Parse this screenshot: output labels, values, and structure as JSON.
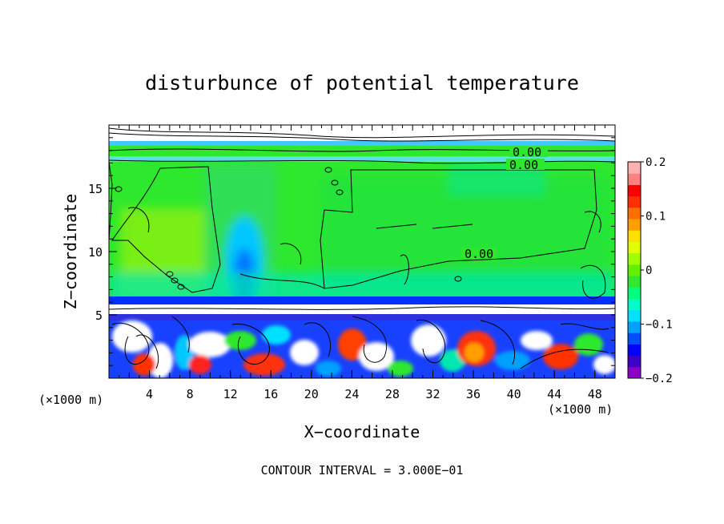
{
  "chart_data": {
    "type": "heatmap",
    "title": "disturbunce of potential temperature",
    "xlabel": "X−coordinate",
    "ylabel": "Z−coordinate",
    "x_unit_label": "(×1000 m)",
    "y_unit_label": "(×1000 m)",
    "xlim": [
      0,
      50
    ],
    "ylim": [
      0,
      20
    ],
    "x_ticks": [
      "4",
      "8",
      "12",
      "16",
      "20",
      "24",
      "28",
      "32",
      "36",
      "40",
      "44",
      "48"
    ],
    "x_tick_values": [
      4,
      8,
      12,
      16,
      20,
      24,
      28,
      32,
      36,
      40,
      44,
      48
    ],
    "y_ticks": [
      "5",
      "10",
      "15"
    ],
    "y_tick_values": [
      5,
      10,
      15
    ],
    "colorbar": {
      "min": -0.2,
      "max": 0.2,
      "labels": [
        "0.2",
        "0.1",
        "0",
        "−0.1",
        "−0.2"
      ],
      "label_values": [
        0.2,
        0.1,
        0,
        -0.1,
        -0.2
      ],
      "colors": [
        "#8a00c8",
        "#3c00c8",
        "#0000ff",
        "#0050ff",
        "#00a0ff",
        "#00e0ff",
        "#00ffc8",
        "#00ff80",
        "#30e830",
        "#60f000",
        "#a0ff00",
        "#e0ff00",
        "#ffe000",
        "#ffa000",
        "#ff7000",
        "#ff3000",
        "#ff0000",
        "#ff8080",
        "#ffb0b0"
      ]
    },
    "contour_labels": [
      "0.00",
      "0.00",
      "0.00"
    ],
    "footer": "CONTOUR INTERVAL = 3.000E−01"
  }
}
